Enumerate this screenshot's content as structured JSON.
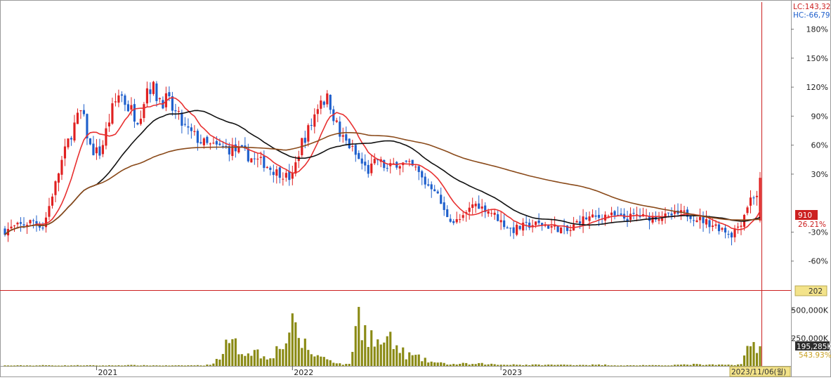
{
  "chart_data": {
    "type": "candlestick",
    "price_axis": {
      "scale": "percent",
      "ticks": [
        "180%",
        "150%",
        "120%",
        "90%",
        "60%",
        "30%",
        "-30%",
        "-60%"
      ],
      "tick_values": [
        180,
        150,
        120,
        90,
        60,
        30,
        -30,
        -60
      ],
      "range": [
        -90,
        208
      ]
    },
    "volume_axis": {
      "ticks": [
        "500,000K",
        "250,000K"
      ],
      "tick_values": [
        500000,
        250000
      ],
      "range": [
        0,
        680000
      ]
    },
    "x_axis": {
      "labels": [
        "2021",
        "2022",
        "2023",
        "11/06"
      ],
      "label_bars": [
        29,
        91,
        157,
        232
      ]
    },
    "header": {
      "lc": "LC:143,32",
      "hc": "HC:-66,79"
    },
    "current": {
      "price": "910",
      "change": "26.21%",
      "change_value": 26.21,
      "bottom_value": "202",
      "volume": "195,285K",
      "volume_ratio": "543.93%",
      "date": "2023/11/06(월)"
    },
    "series": [
      {
        "name": "price",
        "type": "candles"
      },
      {
        "name": "ma-short",
        "color": "#e83030"
      },
      {
        "name": "ma-mid",
        "color": "#111111"
      },
      {
        "name": "ma-long",
        "color": "#8a4a1a"
      },
      {
        "name": "volume",
        "type": "bar",
        "color": "#8a8a14"
      }
    ],
    "colors": {
      "up": "#e02020",
      "down": "#1e5fcc",
      "crosshair": "#cc2020"
    },
    "anchor_close_pct": [
      -28,
      -25,
      -22,
      -18,
      -25,
      10,
      45,
      75,
      95,
      55,
      52,
      90,
      115,
      98,
      88,
      125,
      110,
      105,
      90,
      75,
      68,
      60,
      58,
      57,
      55,
      52,
      45,
      42,
      34,
      30,
      25,
      62,
      80,
      110,
      105,
      70,
      60,
      45,
      33,
      45,
      35,
      42,
      40,
      35,
      20,
      15,
      -10,
      -20,
      -15,
      0,
      -5,
      -10,
      -20,
      -28,
      -25,
      -22,
      -22,
      -24,
      -26,
      -30,
      -18,
      -15,
      -15,
      -12,
      -14,
      -16,
      -12,
      -15,
      -14,
      -14,
      -12,
      -10,
      -14,
      -18,
      -22,
      -26,
      -32,
      -20,
      5,
      10
    ],
    "volume_thousands": [
      4,
      4,
      5,
      4,
      6,
      5,
      4,
      5,
      6,
      5,
      4,
      5,
      6,
      7,
      6,
      5,
      5,
      4,
      4,
      5,
      6,
      5,
      30,
      170,
      190,
      120,
      150,
      80,
      110,
      180,
      340,
      230,
      120,
      80,
      60,
      20,
      10,
      440,
      300,
      190,
      240,
      160,
      100,
      80,
      50,
      30,
      20,
      15,
      20,
      15,
      20,
      15,
      10,
      15,
      10,
      10,
      10,
      10,
      10,
      10,
      10,
      10,
      10,
      10,
      5,
      5,
      5,
      8,
      5,
      5,
      10,
      10,
      15,
      10,
      10,
      10,
      10,
      15,
      190,
      190
    ]
  }
}
